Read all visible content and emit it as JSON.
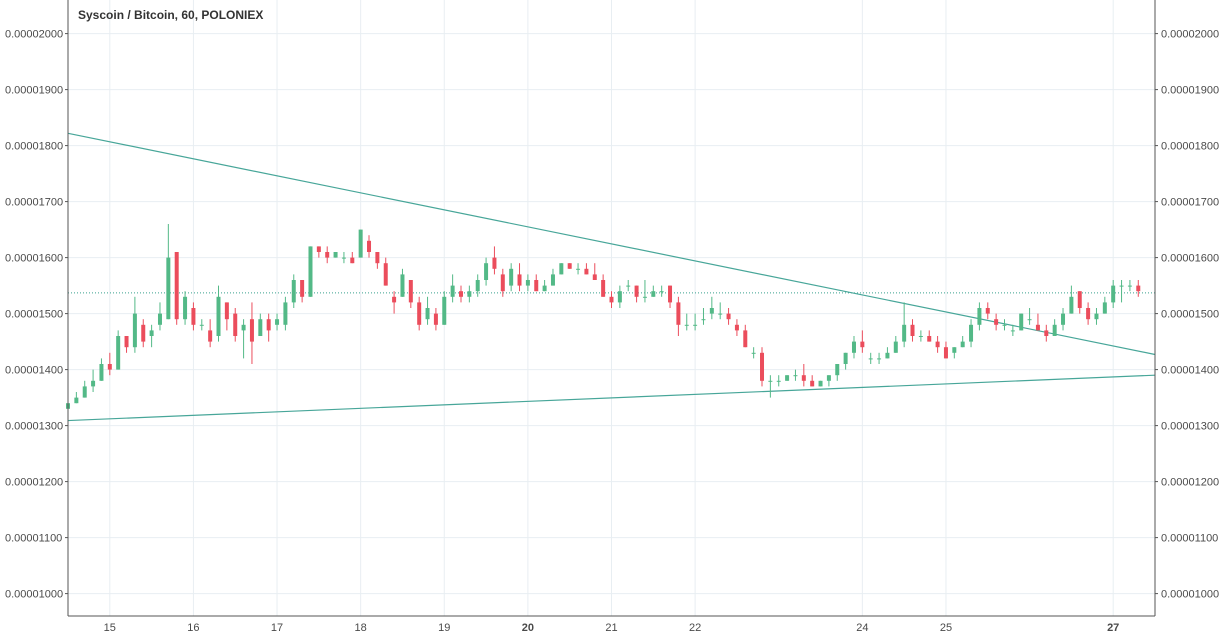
{
  "chart_data": {
    "type": "candlestick",
    "title": "Syscoin / Bitcoin, 60, POLONIEX",
    "y_ticks": [
      "0.00002000",
      "0.00001900",
      "0.00001800",
      "0.00001700",
      "0.00001600",
      "0.00001500",
      "0.00001400",
      "0.00001300",
      "0.00001200",
      "0.00001100",
      "0.00001000"
    ],
    "x_ticks": [
      {
        "label": "15",
        "bold": false
      },
      {
        "label": "16",
        "bold": false
      },
      {
        "label": "17",
        "bold": false
      },
      {
        "label": "18",
        "bold": false
      },
      {
        "label": "19",
        "bold": false
      },
      {
        "label": "20",
        "bold": true
      },
      {
        "label": "21",
        "bold": false
      },
      {
        "label": "22",
        "bold": false
      },
      {
        "label": "24",
        "bold": false
      },
      {
        "label": "25",
        "bold": false
      },
      {
        "label": "27",
        "bold": true
      }
    ],
    "x_tick_days": [
      15,
      16,
      17,
      18,
      19,
      20,
      21,
      22,
      24,
      25,
      27
    ],
    "ylim": [
      9.6e-06,
      2.06e-05
    ],
    "xlim": [
      14.5,
      27.5
    ],
    "reference_line": 1.537e-05,
    "trendlines": [
      {
        "name": "upper",
        "points": [
          [
            14.5,
            1.822e-05
          ],
          [
            27.5,
            1.427e-05
          ]
        ]
      },
      {
        "name": "lower",
        "points": [
          [
            14.5,
            1.309e-05
          ],
          [
            27.5,
            1.39e-05
          ]
        ]
      }
    ],
    "candles": [
      [
        14.5,
        1.33,
        1.35,
        1.31,
        1.34
      ],
      [
        14.6,
        1.34,
        1.36,
        1.34,
        1.35
      ],
      [
        14.7,
        1.35,
        1.38,
        1.35,
        1.37
      ],
      [
        14.8,
        1.37,
        1.4,
        1.36,
        1.38
      ],
      [
        14.9,
        1.38,
        1.42,
        1.38,
        1.41
      ],
      [
        15.0,
        1.41,
        1.43,
        1.39,
        1.4
      ],
      [
        15.1,
        1.4,
        1.47,
        1.4,
        1.46
      ],
      [
        15.2,
        1.46,
        1.46,
        1.43,
        1.44
      ],
      [
        15.3,
        1.44,
        1.53,
        1.43,
        1.5
      ],
      [
        15.4,
        1.48,
        1.49,
        1.44,
        1.45
      ],
      [
        15.5,
        1.46,
        1.48,
        1.44,
        1.47
      ],
      [
        15.6,
        1.48,
        1.52,
        1.47,
        1.5
      ],
      [
        15.7,
        1.49,
        1.66,
        1.49,
        1.6
      ],
      [
        15.8,
        1.61,
        1.61,
        1.48,
        1.49
      ],
      [
        15.9,
        1.49,
        1.54,
        1.48,
        1.53
      ],
      [
        16.0,
        1.51,
        1.52,
        1.47,
        1.48
      ],
      [
        16.1,
        1.48,
        1.49,
        1.47,
        1.48
      ],
      [
        16.2,
        1.47,
        1.49,
        1.44,
        1.45
      ],
      [
        16.3,
        1.46,
        1.55,
        1.45,
        1.53
      ],
      [
        16.4,
        1.52,
        1.52,
        1.47,
        1.49
      ],
      [
        16.5,
        1.5,
        1.51,
        1.45,
        1.46
      ],
      [
        16.6,
        1.47,
        1.49,
        1.42,
        1.48
      ],
      [
        16.7,
        1.49,
        1.52,
        1.41,
        1.45
      ],
      [
        16.8,
        1.46,
        1.5,
        1.46,
        1.49
      ],
      [
        16.9,
        1.49,
        1.5,
        1.45,
        1.47
      ],
      [
        17.0,
        1.48,
        1.5,
        1.47,
        1.49
      ],
      [
        17.1,
        1.48,
        1.53,
        1.47,
        1.52
      ],
      [
        17.2,
        1.52,
        1.57,
        1.51,
        1.56
      ],
      [
        17.3,
        1.56,
        1.56,
        1.52,
        1.53
      ],
      [
        17.4,
        1.53,
        1.62,
        1.53,
        1.62
      ],
      [
        17.5,
        1.62,
        1.62,
        1.6,
        1.61
      ],
      [
        17.6,
        1.61,
        1.62,
        1.59,
        1.6
      ],
      [
        17.7,
        1.6,
        1.61,
        1.6,
        1.61
      ],
      [
        17.8,
        1.6,
        1.61,
        1.59,
        1.6
      ],
      [
        17.9,
        1.6,
        1.61,
        1.59,
        1.59
      ],
      [
        18.0,
        1.6,
        1.65,
        1.6,
        1.65
      ],
      [
        18.1,
        1.63,
        1.64,
        1.6,
        1.61
      ],
      [
        18.2,
        1.61,
        1.61,
        1.58,
        1.59
      ],
      [
        18.3,
        1.59,
        1.6,
        1.55,
        1.55
      ],
      [
        18.4,
        1.53,
        1.54,
        1.5,
        1.52
      ],
      [
        18.5,
        1.53,
        1.58,
        1.53,
        1.57
      ],
      [
        18.6,
        1.56,
        1.56,
        1.51,
        1.52
      ],
      [
        18.7,
        1.52,
        1.53,
        1.47,
        1.48
      ],
      [
        18.8,
        1.49,
        1.53,
        1.48,
        1.51
      ],
      [
        18.9,
        1.5,
        1.51,
        1.47,
        1.48
      ],
      [
        19.0,
        1.48,
        1.54,
        1.48,
        1.53
      ],
      [
        19.1,
        1.53,
        1.57,
        1.52,
        1.55
      ],
      [
        19.2,
        1.54,
        1.55,
        1.52,
        1.53
      ],
      [
        19.3,
        1.53,
        1.55,
        1.52,
        1.54
      ],
      [
        19.4,
        1.54,
        1.57,
        1.53,
        1.56
      ],
      [
        19.5,
        1.56,
        1.6,
        1.55,
        1.59
      ],
      [
        19.6,
        1.6,
        1.62,
        1.57,
        1.58
      ],
      [
        19.7,
        1.57,
        1.58,
        1.53,
        1.54
      ],
      [
        19.8,
        1.55,
        1.59,
        1.54,
        1.58
      ],
      [
        19.9,
        1.57,
        1.59,
        1.54,
        1.55
      ],
      [
        20.0,
        1.55,
        1.57,
        1.54,
        1.56
      ],
      [
        20.1,
        1.56,
        1.57,
        1.54,
        1.54
      ],
      [
        20.2,
        1.54,
        1.56,
        1.54,
        1.55
      ],
      [
        20.3,
        1.55,
        1.58,
        1.55,
        1.57
      ],
      [
        20.4,
        1.57,
        1.59,
        1.57,
        1.59
      ],
      [
        20.5,
        1.59,
        1.59,
        1.58,
        1.58
      ],
      [
        20.6,
        1.58,
        1.59,
        1.57,
        1.58
      ],
      [
        20.7,
        1.58,
        1.59,
        1.57,
        1.57
      ],
      [
        20.8,
        1.57,
        1.59,
        1.56,
        1.56
      ],
      [
        20.9,
        1.56,
        1.57,
        1.53,
        1.53
      ],
      [
        21.0,
        1.53,
        1.54,
        1.51,
        1.52
      ],
      [
        21.1,
        1.52,
        1.55,
        1.51,
        1.54
      ],
      [
        21.2,
        1.55,
        1.56,
        1.54,
        1.55
      ],
      [
        21.3,
        1.55,
        1.55,
        1.52,
        1.53
      ],
      [
        21.4,
        1.53,
        1.56,
        1.52,
        1.53
      ],
      [
        21.5,
        1.53,
        1.55,
        1.53,
        1.54
      ],
      [
        21.6,
        1.54,
        1.55,
        1.53,
        1.54
      ],
      [
        21.7,
        1.55,
        1.55,
        1.51,
        1.52
      ],
      [
        21.8,
        1.52,
        1.53,
        1.46,
        1.48
      ],
      [
        21.9,
        1.48,
        1.5,
        1.47,
        1.48
      ],
      [
        22.0,
        1.48,
        1.5,
        1.47,
        1.48
      ],
      [
        22.1,
        1.49,
        1.51,
        1.48,
        1.49
      ],
      [
        22.2,
        1.5,
        1.53,
        1.49,
        1.51
      ],
      [
        22.3,
        1.5,
        1.52,
        1.49,
        1.5
      ],
      [
        22.4,
        1.5,
        1.51,
        1.48,
        1.49
      ],
      [
        22.5,
        1.48,
        1.49,
        1.46,
        1.47
      ],
      [
        22.6,
        1.47,
        1.48,
        1.44,
        1.44
      ],
      [
        22.7,
        1.43,
        1.44,
        1.42,
        1.43
      ],
      [
        22.8,
        1.43,
        1.44,
        1.37,
        1.38
      ],
      [
        22.9,
        1.38,
        1.39,
        1.35,
        1.38
      ],
      [
        23.0,
        1.38,
        1.39,
        1.37,
        1.38
      ],
      [
        23.1,
        1.38,
        1.39,
        1.38,
        1.39
      ],
      [
        23.2,
        1.39,
        1.4,
        1.38,
        1.39
      ],
      [
        23.3,
        1.39,
        1.41,
        1.37,
        1.38
      ],
      [
        23.4,
        1.38,
        1.39,
        1.37,
        1.37
      ],
      [
        23.5,
        1.37,
        1.38,
        1.37,
        1.38
      ],
      [
        23.6,
        1.38,
        1.39,
        1.37,
        1.39
      ],
      [
        23.7,
        1.39,
        1.41,
        1.38,
        1.41
      ],
      [
        23.8,
        1.41,
        1.43,
        1.4,
        1.43
      ],
      [
        23.9,
        1.43,
        1.46,
        1.42,
        1.45
      ],
      [
        24.0,
        1.45,
        1.47,
        1.43,
        1.44
      ],
      [
        24.1,
        1.42,
        1.43,
        1.41,
        1.42
      ],
      [
        24.2,
        1.42,
        1.43,
        1.41,
        1.42
      ],
      [
        24.3,
        1.42,
        1.44,
        1.42,
        1.43
      ],
      [
        24.4,
        1.43,
        1.46,
        1.43,
        1.45
      ],
      [
        24.5,
        1.45,
        1.52,
        1.44,
        1.48
      ],
      [
        24.6,
        1.48,
        1.49,
        1.45,
        1.46
      ],
      [
        24.7,
        1.46,
        1.47,
        1.45,
        1.46
      ],
      [
        24.8,
        1.46,
        1.47,
        1.45,
        1.45
      ],
      [
        24.9,
        1.45,
        1.46,
        1.43,
        1.44
      ],
      [
        25.0,
        1.44,
        1.45,
        1.42,
        1.42
      ],
      [
        25.1,
        1.43,
        1.44,
        1.42,
        1.44
      ],
      [
        25.2,
        1.44,
        1.46,
        1.44,
        1.45
      ],
      [
        25.3,
        1.45,
        1.49,
        1.44,
        1.48
      ],
      [
        25.4,
        1.48,
        1.52,
        1.47,
        1.51
      ],
      [
        25.5,
        1.51,
        1.52,
        1.49,
        1.5
      ],
      [
        25.6,
        1.49,
        1.5,
        1.47,
        1.48
      ],
      [
        25.7,
        1.48,
        1.49,
        1.47,
        1.48
      ],
      [
        25.8,
        1.47,
        1.48,
        1.46,
        1.47
      ],
      [
        25.9,
        1.47,
        1.5,
        1.47,
        1.5
      ],
      [
        26.0,
        1.49,
        1.51,
        1.48,
        1.49
      ],
      [
        26.1,
        1.48,
        1.5,
        1.47,
        1.47
      ],
      [
        26.2,
        1.47,
        1.48,
        1.45,
        1.46
      ],
      [
        26.3,
        1.46,
        1.49,
        1.46,
        1.48
      ],
      [
        26.4,
        1.48,
        1.51,
        1.47,
        1.5
      ],
      [
        26.5,
        1.5,
        1.55,
        1.5,
        1.53
      ],
      [
        26.6,
        1.54,
        1.54,
        1.5,
        1.51
      ],
      [
        26.7,
        1.51,
        1.52,
        1.48,
        1.49
      ],
      [
        26.8,
        1.49,
        1.51,
        1.48,
        1.5
      ],
      [
        26.9,
        1.5,
        1.53,
        1.5,
        1.52
      ],
      [
        27.0,
        1.52,
        1.56,
        1.51,
        1.55
      ],
      [
        27.1,
        1.55,
        1.56,
        1.52,
        1.55
      ],
      [
        27.2,
        1.55,
        1.56,
        1.54,
        1.55
      ],
      [
        27.3,
        1.55,
        1.56,
        1.53,
        1.54
      ]
    ],
    "candle_scale": 1e-05,
    "colors": {
      "up": "#53b987",
      "down": "#eb4d5c",
      "trendline": "#47a699",
      "reference": "#3aa18f",
      "grid": "#e8eef2",
      "axis": "#555555"
    }
  }
}
